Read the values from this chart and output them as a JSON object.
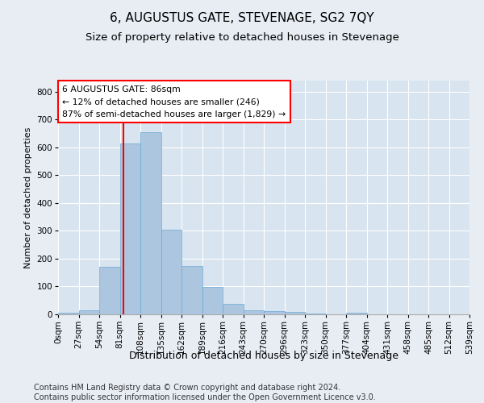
{
  "title": "6, AUGUSTUS GATE, STEVENAGE, SG2 7QY",
  "subtitle": "Size of property relative to detached houses in Stevenage",
  "xlabel": "Distribution of detached houses by size in Stevenage",
  "ylabel": "Number of detached properties",
  "bar_values": [
    7,
    15,
    170,
    615,
    655,
    305,
    175,
    98,
    38,
    15,
    12,
    10,
    3,
    0,
    5,
    0,
    0,
    0,
    0,
    0
  ],
  "bar_labels": [
    "0sqm",
    "27sqm",
    "54sqm",
    "81sqm",
    "108sqm",
    "135sqm",
    "162sqm",
    "189sqm",
    "216sqm",
    "243sqm",
    "270sqm",
    "296sqm",
    "323sqm",
    "350sqm",
    "377sqm",
    "404sqm",
    "431sqm",
    "458sqm",
    "485sqm",
    "512sqm",
    "539sqm"
  ],
  "bar_color": "#adc6e0",
  "bar_edge_color": "#6aaad4",
  "vline_x_index": 3.185,
  "annotation_text": "6 AUGUSTUS GATE: 86sqm\n← 12% of detached houses are smaller (246)\n87% of semi-detached houses are larger (1,829) →",
  "annotation_box_color": "white",
  "annotation_box_edge_color": "red",
  "ylim": [
    0,
    840
  ],
  "yticks": [
    0,
    100,
    200,
    300,
    400,
    500,
    600,
    700,
    800
  ],
  "footer_text": "Contains HM Land Registry data © Crown copyright and database right 2024.\nContains public sector information licensed under the Open Government Licence v3.0.",
  "background_color": "#e8edf4",
  "plot_background_color": "#d8e4ef",
  "grid_color": "white",
  "title_fontsize": 11,
  "subtitle_fontsize": 9.5,
  "xlabel_fontsize": 9,
  "ylabel_fontsize": 8,
  "tick_fontsize": 7.5,
  "footer_fontsize": 7
}
